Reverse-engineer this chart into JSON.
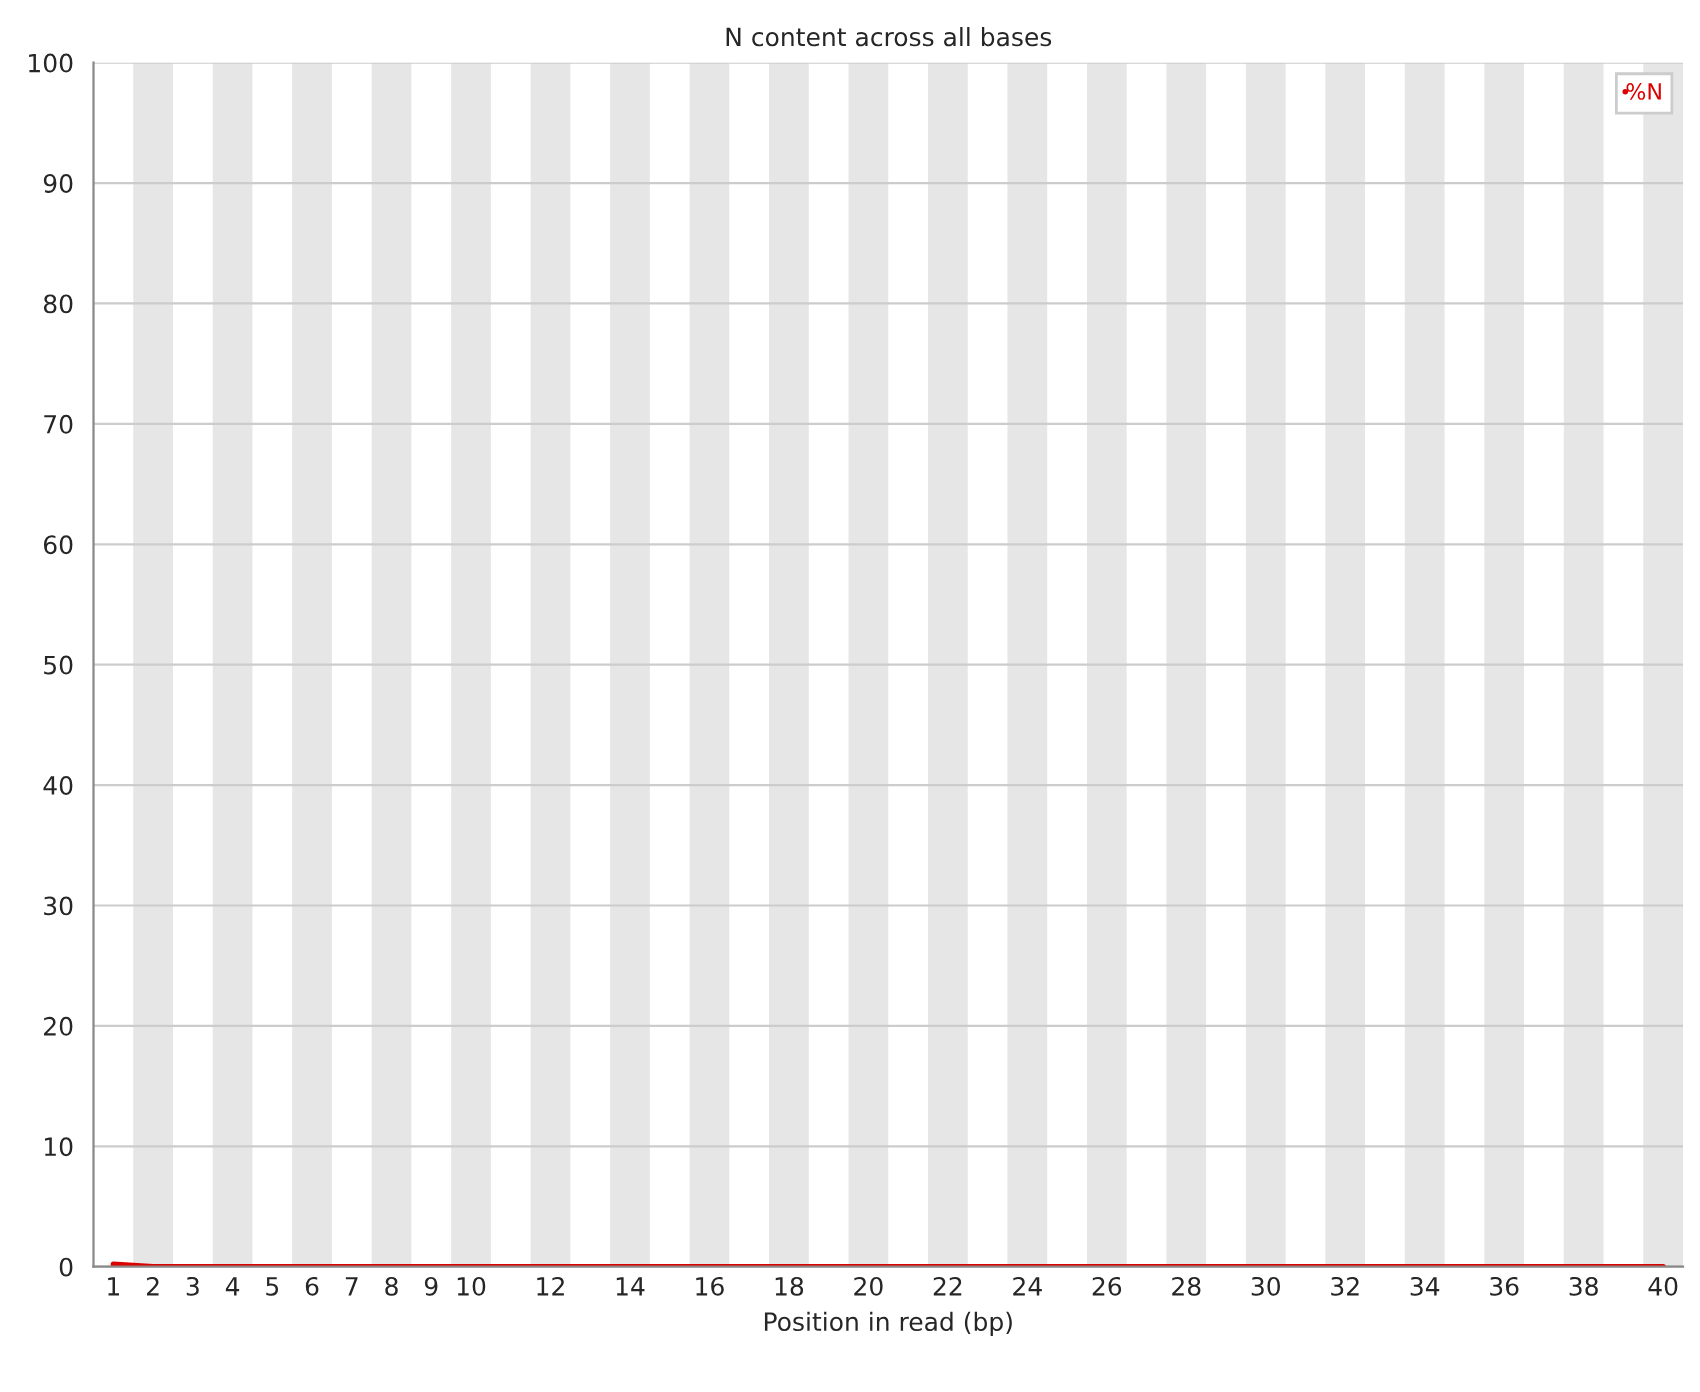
{
  "chart_data": {
    "type": "line",
    "title": "N content across all bases",
    "xlabel": "Position in read (bp)",
    "categories": [
      "1",
      "2",
      "3",
      "4",
      "5",
      "6",
      "7",
      "8",
      "9",
      "10",
      null,
      "12",
      null,
      "14",
      null,
      "16",
      null,
      "18",
      null,
      "20",
      null,
      "22",
      null,
      "24",
      null,
      "26",
      null,
      "28",
      null,
      "30",
      null,
      "32",
      null,
      "34",
      null,
      "36",
      null,
      "38",
      null,
      "40"
    ],
    "series": [
      {
        "name": "%N",
        "color": "#dd0000",
        "values": [
          0.2,
          0,
          0,
          0,
          0,
          0,
          0,
          0,
          0,
          0,
          0,
          0,
          0,
          0,
          0,
          0,
          0,
          0,
          0,
          0,
          0,
          0,
          0,
          0,
          0,
          0,
          0,
          0,
          0,
          0,
          0,
          0,
          0,
          0,
          0,
          0,
          0,
          0,
          0,
          0
        ]
      }
    ],
    "ylim": [
      0,
      100
    ],
    "yticks": [
      0,
      10,
      20,
      30,
      40,
      50,
      60,
      70,
      80,
      90,
      100
    ],
    "grid": "y",
    "legend": "top right"
  }
}
